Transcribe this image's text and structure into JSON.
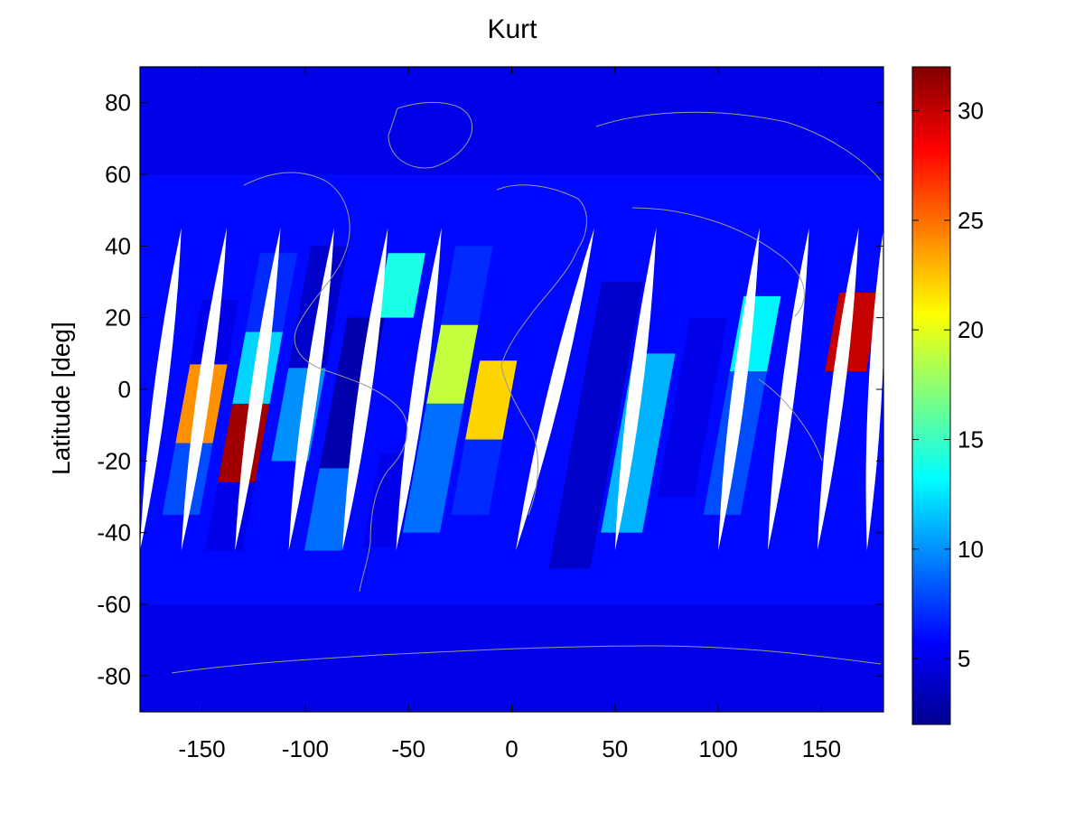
{
  "chart_data": {
    "type": "heatmap",
    "title": "Kurt",
    "xlabel": "",
    "ylabel": "Latitude [deg]",
    "xlim": [
      -180,
      180
    ],
    "ylim": [
      -90,
      90
    ],
    "xticks": [
      -150,
      -100,
      -50,
      0,
      50,
      100,
      150
    ],
    "yticks": [
      -80,
      -60,
      -40,
      -20,
      0,
      20,
      40,
      60,
      80
    ],
    "colorbar": {
      "colormap": "jet",
      "range": [
        2,
        32
      ],
      "ticks": [
        5,
        10,
        15,
        20,
        25,
        30
      ]
    },
    "grid": false,
    "background_value": 6,
    "polar_band_values": [
      {
        "lat": [
          60,
          90
        ],
        "value": 5
      },
      {
        "lat": [
          -90,
          -60
        ],
        "value": 5
      }
    ],
    "swath_tilt_deg_lon_per_deg_lat": 0.32,
    "swath_cells": [
      {
        "lon": [
          -180,
          -160
        ],
        "lat": [
          -50,
          40
        ],
        "value": 6
      },
      {
        "lon": [
          -158,
          -140
        ],
        "lat": [
          -15,
          7
        ],
        "value": 24
      },
      {
        "lon": [
          -158,
          -140
        ],
        "lat": [
          7,
          25
        ],
        "value": 5
      },
      {
        "lon": [
          -158,
          -140
        ],
        "lat": [
          -35,
          -15
        ],
        "value": 8
      },
      {
        "lon": [
          -134,
          -116
        ],
        "lat": [
          -26,
          -4
        ],
        "value": 31
      },
      {
        "lon": [
          -134,
          -116
        ],
        "lat": [
          -4,
          16
        ],
        "value": 12
      },
      {
        "lon": [
          -134,
          -116
        ],
        "lat": [
          16,
          38
        ],
        "value": 7
      },
      {
        "lon": [
          -134,
          -116
        ],
        "lat": [
          -45,
          -26
        ],
        "value": 5
      },
      {
        "lon": [
          -110,
          -92
        ],
        "lat": [
          -20,
          6
        ],
        "value": 10
      },
      {
        "lon": [
          -110,
          -92
        ],
        "lat": [
          6,
          40
        ],
        "value": 4
      },
      {
        "lon": [
          -86,
          -68
        ],
        "lat": [
          -45,
          -22
        ],
        "value": 9
      },
      {
        "lon": [
          -86,
          -68
        ],
        "lat": [
          -22,
          20
        ],
        "value": 3
      },
      {
        "lon": [
          -72,
          -54
        ],
        "lat": [
          20,
          38
        ],
        "value": 14
      },
      {
        "lon": [
          -58,
          -40
        ],
        "lat": [
          -44,
          -18
        ],
        "value": 5
      },
      {
        "lon": [
          -40,
          -22
        ],
        "lat": [
          -4,
          18
        ],
        "value": 19
      },
      {
        "lon": [
          -40,
          -22
        ],
        "lat": [
          -40,
          -4
        ],
        "value": 9
      },
      {
        "lon": [
          -40,
          -22
        ],
        "lat": [
          18,
          40
        ],
        "value": 7
      },
      {
        "lon": [
          -18,
          0
        ],
        "lat": [
          -14,
          8
        ],
        "value": 22
      },
      {
        "lon": [
          -18,
          0
        ],
        "lat": [
          -35,
          -14
        ],
        "value": 7
      },
      {
        "lon": [
          34,
          54
        ],
        "lat": [
          -50,
          30
        ],
        "value": 4
      },
      {
        "lon": [
          56,
          76
        ],
        "lat": [
          -40,
          10
        ],
        "value": 11
      },
      {
        "lon": [
          80,
          98
        ],
        "lat": [
          -30,
          20
        ],
        "value": 5
      },
      {
        "lon": [
          104,
          122
        ],
        "lat": [
          5,
          26
        ],
        "value": 13
      },
      {
        "lon": [
          104,
          122
        ],
        "lat": [
          -35,
          5
        ],
        "value": 8
      },
      {
        "lon": [
          128,
          146
        ],
        "lat": [
          -40,
          30
        ],
        "value": 6
      },
      {
        "lon": [
          150,
          170
        ],
        "lat": [
          5,
          27
        ],
        "value": 30
      },
      {
        "lon": [
          150,
          170
        ],
        "lat": [
          -35,
          5
        ],
        "value": 6
      }
    ],
    "no_data_gaps": [
      {
        "lon_at_lat_-40": -180,
        "lon_at_lat_40": -160
      },
      {
        "lon_at_lat_-40": -160,
        "lon_at_lat_40": -138
      },
      {
        "lon_at_lat_-40": -134,
        "lon_at_lat_40": -112
      },
      {
        "lon_at_lat_-40": -108,
        "lon_at_lat_40": -86
      },
      {
        "lon_at_lat_-40": -82,
        "lon_at_lat_40": -60
      },
      {
        "lon_at_lat_-40": -56,
        "lon_at_lat_40": -34
      },
      {
        "lon_at_lat_-40": 2,
        "lon_at_lat_40": 40
      },
      {
        "lon_at_lat_-40": 50,
        "lon_at_lat_40": 70
      },
      {
        "lon_at_lat_-40": 100,
        "lon_at_lat_40": 120
      },
      {
        "lon_at_lat_-40": 124,
        "lon_at_lat_40": 144
      },
      {
        "lon_at_lat_-40": 148,
        "lon_at_lat_40": 168
      },
      {
        "lon_at_lat_-40": 172,
        "lon_at_lat_40": 180
      }
    ]
  }
}
